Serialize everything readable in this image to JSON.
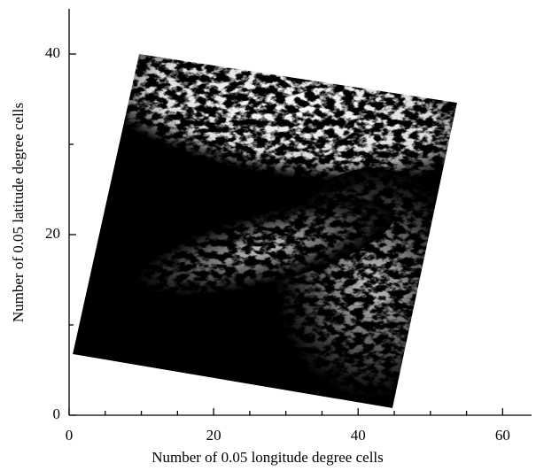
{
  "chart_data": {
    "type": "image",
    "xlabel": "Number of 0.05 longitude degree cells",
    "ylabel": "Number of 0.05 latitude degree cells",
    "xlim": [
      0,
      64
    ],
    "ylim": [
      0,
      45
    ],
    "xticks": [
      0,
      20,
      40,
      60
    ],
    "yticks": [
      0,
      20,
      40
    ],
    "xminorticks": [
      5,
      10,
      15,
      25,
      30,
      35,
      45,
      50,
      55
    ],
    "yminorticks": [
      10,
      30
    ],
    "color": "#000000"
  }
}
